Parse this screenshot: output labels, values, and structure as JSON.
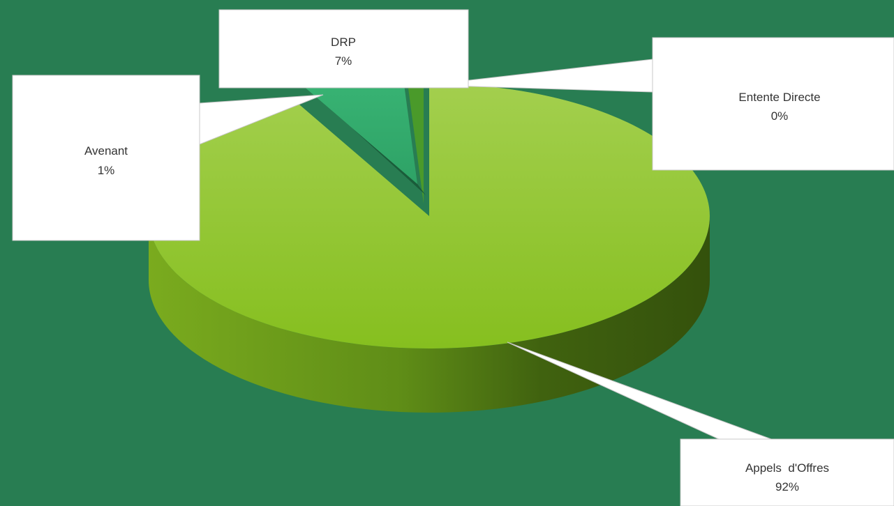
{
  "colors": {
    "background": "#287d52",
    "appels_top": "#8cc425",
    "appels_side": "#5d8a18",
    "drp_top": "#36b070",
    "drp_side": "#1a5c3a",
    "avenant": "#4a9a2a",
    "label_box": "#ffffff",
    "label_text": "#333333"
  },
  "chart_data": {
    "type": "pie",
    "title": "",
    "style": "3d-exploded",
    "slices": [
      {
        "name": "Appels  d'Offres",
        "value": 92,
        "label": "92%"
      },
      {
        "name": "DRP",
        "value": 7,
        "label": "7%"
      },
      {
        "name": "Avenant",
        "value": 1,
        "label": "1%"
      },
      {
        "name": "Entente Directe",
        "value": 0,
        "label": "0%"
      }
    ]
  }
}
